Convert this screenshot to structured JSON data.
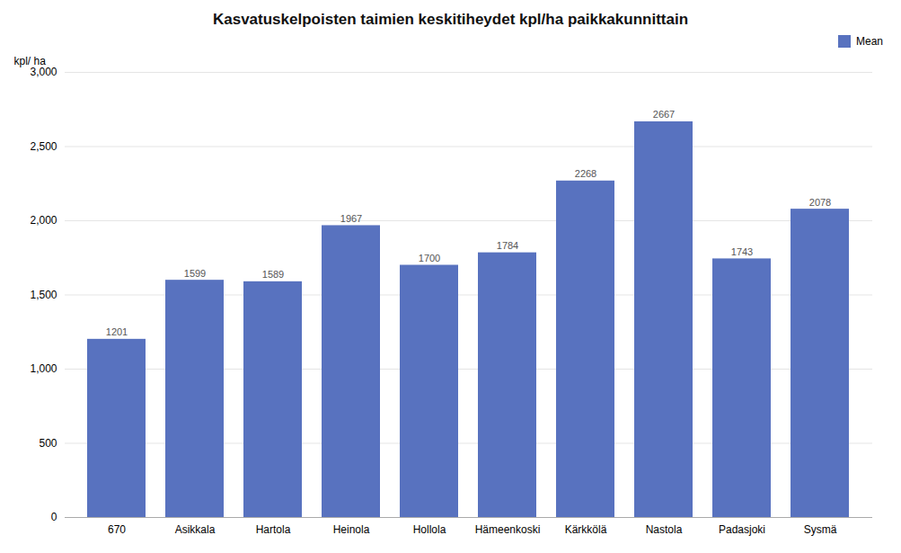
{
  "chart_data": {
    "type": "bar",
    "title": "Kasvatuskelpoisten taimien keskitiheydet kpl/ha paikkakunnittain",
    "ylabel": "kpl/ ha",
    "categories": [
      "670",
      "Asikkala",
      "Hartola",
      "Heinola",
      "Hollola",
      "Hämeenkoski",
      "Kärkkölä",
      "Nastola",
      "Padasjoki",
      "Sysmä"
    ],
    "series": [
      {
        "name": "Mean",
        "color": "#5872bf",
        "values": [
          1201,
          1599,
          1589,
          1967,
          1700,
          1784,
          2268,
          2667,
          1743,
          2078
        ]
      }
    ],
    "ylim": [
      0,
      3000
    ],
    "yticks": [
      0,
      500,
      1000,
      1500,
      2000,
      2500,
      3000
    ],
    "grid": true,
    "data_labels": true,
    "legend": "upper right"
  }
}
